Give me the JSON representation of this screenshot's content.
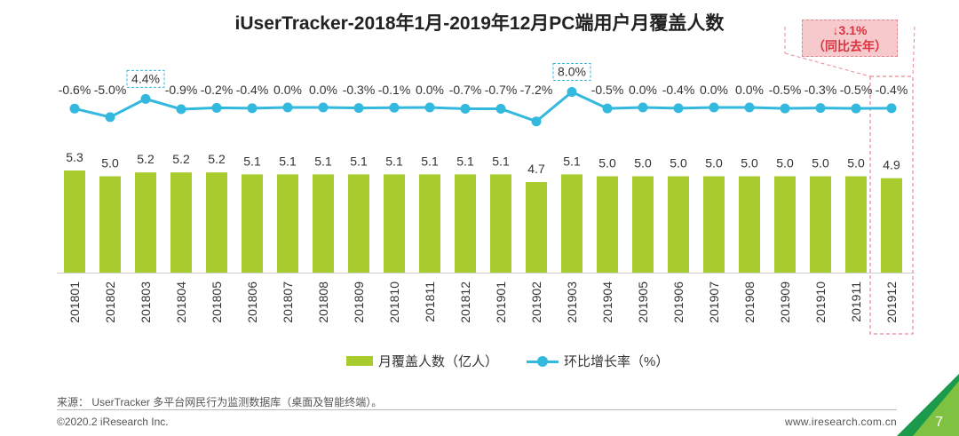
{
  "title": "iUserTracker-2018年1月-2019年12月PC端用户月覆盖人数",
  "callout": {
    "line1": "↓3.1%",
    "line2": "（同比去年）"
  },
  "legend": {
    "bar": "月覆盖人数（亿人）",
    "line": "环比增长率（%）"
  },
  "source": "来源： UserTracker 多平台网民行为监测数据库（桌面及智能终端）。",
  "copyright": "©2020.2 iResearch Inc.",
  "website": "www.iresearch.com.cn",
  "page_number": "7",
  "colors": {
    "bar": "#a8cc2e",
    "line": "#33b8de",
    "callout_bg": "#f6c9cc",
    "callout_text": "#d9333f",
    "accent_green": "#7fc241"
  },
  "chart_data": {
    "type": "bar+line",
    "title": "iUserTracker-2018年1月-2019年12月PC端用户月覆盖人数",
    "categories": [
      "201801",
      "201802",
      "201803",
      "201804",
      "201805",
      "201806",
      "201807",
      "201808",
      "201809",
      "201810",
      "201811",
      "201812",
      "201901",
      "201902",
      "201903",
      "201904",
      "201905",
      "201906",
      "201907",
      "201908",
      "201909",
      "201910",
      "201911",
      "201912"
    ],
    "series": [
      {
        "name": "月覆盖人数（亿人）",
        "type": "bar",
        "values": [
          5.3,
          5.0,
          5.2,
          5.2,
          5.2,
          5.1,
          5.1,
          5.1,
          5.1,
          5.1,
          5.1,
          5.1,
          5.1,
          4.7,
          5.1,
          5.0,
          5.0,
          5.0,
          5.0,
          5.0,
          5.0,
          5.0,
          5.0,
          4.9
        ],
        "labels": [
          "5.3",
          "5.0",
          "5.2",
          "5.2",
          "5.2",
          "5.1",
          "5.1",
          "5.1",
          "5.1",
          "5.1",
          "5.1",
          "5.1",
          "5.1",
          "4.7",
          "5.1",
          "5.0",
          "5.0",
          "5.0",
          "5.0",
          "5.0",
          "5.0",
          "5.0",
          "5.0",
          "4.9"
        ]
      },
      {
        "name": "环比增长率（%）",
        "type": "line",
        "values": [
          -0.6,
          -5.0,
          4.4,
          -0.9,
          -0.2,
          -0.4,
          0.0,
          0.0,
          -0.3,
          -0.1,
          0.0,
          -0.7,
          -0.7,
          -7.2,
          8.0,
          -0.5,
          0.0,
          -0.4,
          0.0,
          0.0,
          -0.5,
          -0.3,
          -0.5,
          -0.4
        ],
        "labels": [
          "-0.6%",
          "-5.0%",
          "4.4%",
          "-0.9%",
          "-0.2%",
          "-0.4%",
          "0.0%",
          "0.0%",
          "-0.3%",
          "-0.1%",
          "0.0%",
          "-0.7%",
          "-0.7%",
          "-7.2%",
          "8.0%",
          "-0.5%",
          "0.0%",
          "-0.4%",
          "0.0%",
          "0.0%",
          "-0.5%",
          "-0.3%",
          "-0.5%",
          "-0.4%"
        ],
        "highlighted": [
          "4.4%",
          "8.0%"
        ]
      }
    ],
    "highlighted_category": "201912",
    "legend_position": "bottom"
  }
}
